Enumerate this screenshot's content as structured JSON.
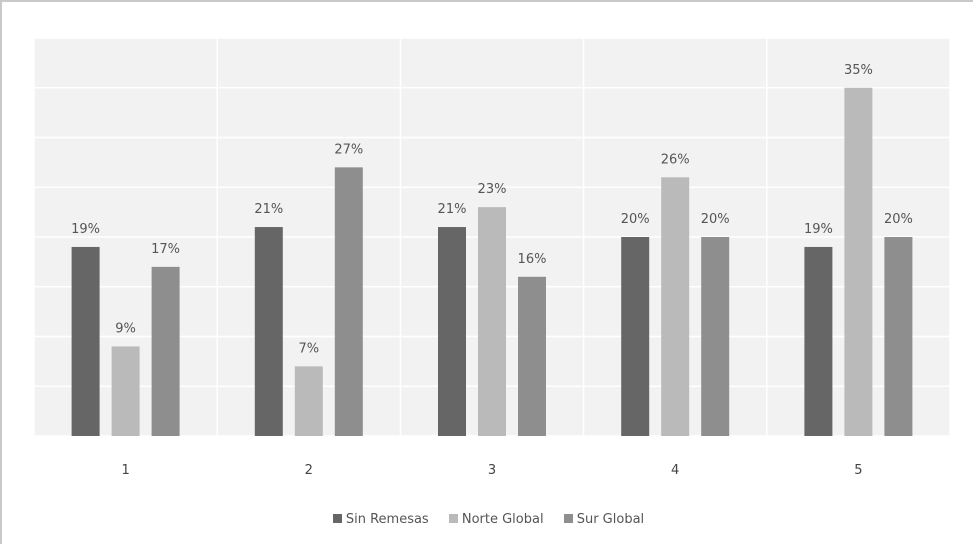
{
  "chart_data": {
    "type": "bar",
    "title": "",
    "xlabel": "",
    "ylabel": "",
    "categories": [
      "1",
      "2",
      "3",
      "4",
      "5"
    ],
    "series": [
      {
        "name": "Sin Remesas",
        "values": [
          19,
          21,
          21,
          20,
          19
        ],
        "labels": [
          "19%",
          "21%",
          "21%",
          "20%",
          "19%"
        ],
        "color": "#666666"
      },
      {
        "name": "Norte Global",
        "values": [
          9,
          7,
          23,
          26,
          35
        ],
        "labels": [
          "9%",
          "7%",
          "23%",
          "26%",
          "35%"
        ],
        "color": "#bababa"
      },
      {
        "name": "Sur Global",
        "values": [
          17,
          27,
          16,
          20,
          20
        ],
        "labels": [
          "17%",
          "27%",
          "16%",
          "20%",
          "20%"
        ],
        "color": "#8e8e8e"
      }
    ],
    "ylim": [
      0,
      40
    ],
    "y_axis_visible": false,
    "grid": true,
    "legend_position": "bottom",
    "plot_background": "#f2f2f2",
    "grid_color": "#ffffff"
  }
}
